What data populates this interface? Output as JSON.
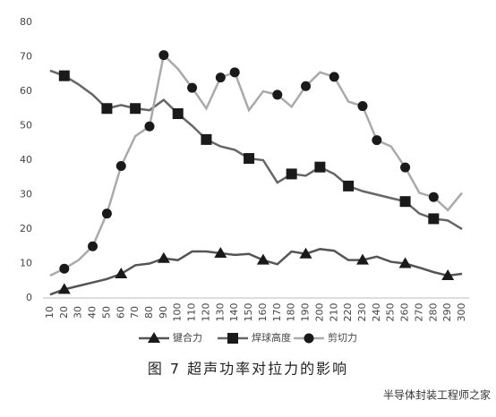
{
  "chart_data": {
    "type": "line",
    "caption": "图 7  超声功率对拉力的影响",
    "watermark": "半导体封装工程师之家",
    "categories": [
      10,
      20,
      30,
      40,
      50,
      60,
      70,
      80,
      90,
      100,
      110,
      120,
      130,
      140,
      150,
      160,
      170,
      180,
      190,
      200,
      210,
      220,
      230,
      240,
      250,
      260,
      270,
      280,
      290,
      300
    ],
    "series": [
      {
        "name": "键合力",
        "color": "#555555",
        "marker": "triangle",
        "marker_indices": [
          1,
          5,
          8,
          12,
          15,
          18,
          22,
          25,
          28
        ],
        "values": [
          1,
          2.5,
          3.5,
          4.5,
          5.5,
          7,
          9.5,
          10,
          11.5,
          11,
          13.5,
          13.5,
          13,
          12.5,
          12.8,
          11,
          9.8,
          13.5,
          12.8,
          14.2,
          13.7,
          11,
          11,
          12,
          10.5,
          10,
          8.8,
          7.5,
          6.5,
          7
        ]
      },
      {
        "name": "焊球高度",
        "color": "#666666",
        "marker": "square",
        "marker_indices": [
          1,
          4,
          6,
          9,
          11,
          14,
          17,
          19,
          21,
          25,
          27
        ],
        "values": [
          66,
          64.5,
          62,
          59,
          55,
          56,
          55,
          54.5,
          57.5,
          53.5,
          50,
          46,
          44,
          43,
          40.5,
          40,
          33.5,
          36,
          35.5,
          38,
          36,
          32.5,
          31,
          30,
          29,
          28,
          24.5,
          23,
          22.5,
          20
        ]
      },
      {
        "name": "剪切力",
        "color": "#aaaaaa",
        "marker": "circle",
        "marker_indices": [
          1,
          3,
          4,
          5,
          7,
          8,
          10,
          12,
          13,
          16,
          18,
          20,
          22,
          23,
          25,
          27
        ],
        "values": [
          6.5,
          8.5,
          11,
          15,
          24.5,
          38.3,
          47,
          49.8,
          70.5,
          66.5,
          61,
          55,
          64,
          65.5,
          54.5,
          60,
          59,
          55.5,
          61.5,
          65.5,
          64.2,
          57,
          55.7,
          45.8,
          44,
          37.9,
          30.5,
          29.3,
          25.5,
          30.5
        ]
      }
    ],
    "marker_color": "#1a1a1a",
    "ylim": [
      0,
      80
    ],
    "yticks": [
      0,
      10,
      20,
      30,
      40,
      50,
      60,
      70,
      80
    ],
    "grid": false,
    "legend": "bottom"
  }
}
